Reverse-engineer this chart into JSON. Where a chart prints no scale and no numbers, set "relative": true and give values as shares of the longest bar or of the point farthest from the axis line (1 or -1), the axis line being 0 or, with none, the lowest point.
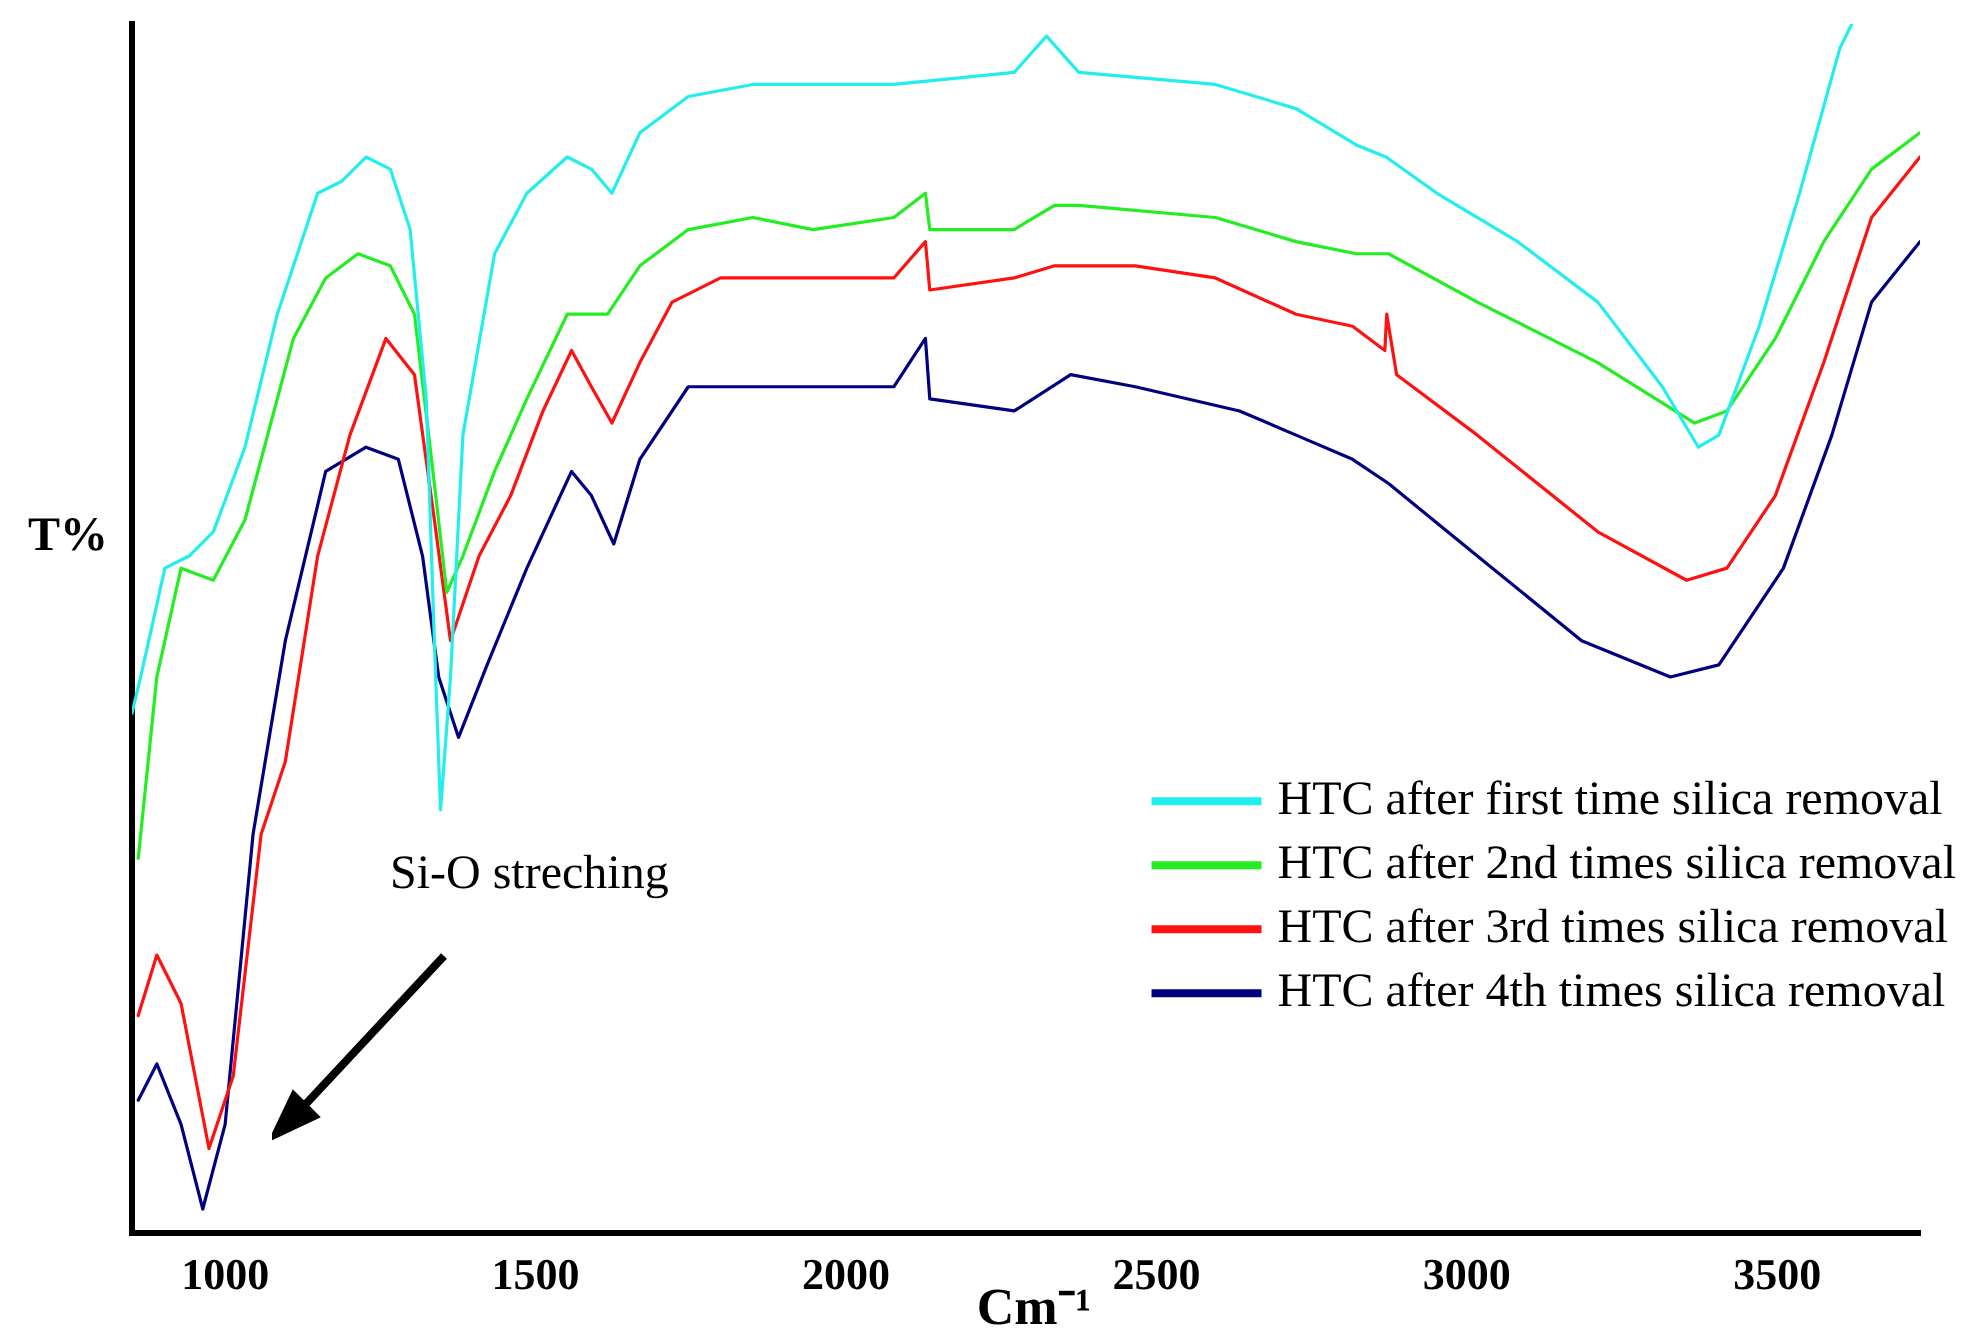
{
  "chart_data": {
    "type": "line",
    "relative": true,
    "xlabel": "Cm⁻¹",
    "ylabel": "T%",
    "xlim": [
      850,
      3730
    ],
    "xticks": [
      1000,
      1500,
      2000,
      2500,
      3000,
      3500
    ],
    "grid": false,
    "legend": "bottom right",
    "marker": "none",
    "line_style": "solid",
    "annotations": [
      "Si-O streching"
    ],
    "series": [
      {
        "name": "HTC after first time silica removal",
        "color": "#22eeee",
        "x": [
          850,
          864,
          903,
          942,
          981,
          1032,
          1084,
          1149,
          1188,
          1227,
          1266,
          1298,
          1324,
          1337,
          1347,
          1363,
          1383,
          1434,
          1486,
          1551,
          1590,
          1623,
          1668,
          1746,
          1850,
          1947,
          2077,
          2271,
          2323,
          2375,
          2595,
          2725,
          2822,
          2870,
          2952,
          3082,
          3211,
          3315,
          3373,
          3406,
          3471,
          3536,
          3601,
          3620
        ],
        "values": [
          0.43,
          0.46,
          0.55,
          0.56,
          0.58,
          0.65,
          0.76,
          0.86,
          0.87,
          0.89,
          0.88,
          0.83,
          0.69,
          0.49,
          0.35,
          0.46,
          0.66,
          0.81,
          0.86,
          0.89,
          0.88,
          0.86,
          0.91,
          0.94,
          0.95,
          0.95,
          0.95,
          0.96,
          0.99,
          0.96,
          0.95,
          0.93,
          0.9,
          0.89,
          0.86,
          0.82,
          0.77,
          0.7,
          0.65,
          0.66,
          0.75,
          0.86,
          0.98,
          1
        ]
      },
      {
        "name": "HTC after 2nd times silica removal",
        "color": "#22ee22",
        "x": [
          860,
          890,
          929,
          981,
          1032,
          1110,
          1162,
          1214,
          1266,
          1305,
          1337,
          1357,
          1383,
          1434,
          1486,
          1551,
          1616,
          1668,
          1746,
          1850,
          1947,
          2077,
          2128,
          2135,
          2271,
          2336,
          2375,
          2595,
          2725,
          2822,
          2874,
          3017,
          3211,
          3367,
          3419,
          3497,
          3575,
          3652,
          3730
        ],
        "values": [
          0.31,
          0.46,
          0.55,
          0.54,
          0.59,
          0.74,
          0.79,
          0.81,
          0.8,
          0.76,
          0.62,
          0.53,
          0.56,
          0.63,
          0.69,
          0.76,
          0.76,
          0.8,
          0.83,
          0.84,
          0.83,
          0.84,
          0.86,
          0.83,
          0.83,
          0.85,
          0.85,
          0.84,
          0.82,
          0.81,
          0.81,
          0.77,
          0.72,
          0.67,
          0.68,
          0.74,
          0.82,
          0.88,
          0.91
        ]
      },
      {
        "name": "HTC after 3rd times silica removal",
        "color": "#ff1111",
        "x": [
          860,
          890,
          929,
          974,
          1013,
          1058,
          1097,
          1149,
          1201,
          1259,
          1305,
          1337,
          1363,
          1409,
          1460,
          1512,
          1558,
          1590,
          1623,
          1668,
          1720,
          1798,
          1850,
          1947,
          2077,
          2128,
          2135,
          2271,
          2336,
          2466,
          2595,
          2725,
          2816,
          2868,
          2871,
          2887,
          3017,
          3211,
          3354,
          3419,
          3497,
          3575,
          3652,
          3730
        ],
        "values": [
          0.18,
          0.23,
          0.19,
          0.07,
          0.13,
          0.33,
          0.39,
          0.56,
          0.66,
          0.74,
          0.71,
          0.59,
          0.49,
          0.56,
          0.61,
          0.68,
          0.73,
          0.7,
          0.67,
          0.72,
          0.77,
          0.79,
          0.79,
          0.79,
          0.79,
          0.82,
          0.78,
          0.79,
          0.8,
          0.8,
          0.79,
          0.76,
          0.75,
          0.73,
          0.76,
          0.71,
          0.66,
          0.58,
          0.54,
          0.55,
          0.61,
          0.72,
          0.84,
          0.89
        ]
      },
      {
        "name": "HTC after 4th times silica removal",
        "color": "#000080",
        "x": [
          860,
          890,
          929,
          964,
          1000,
          1045,
          1097,
          1162,
          1227,
          1279,
          1318,
          1344,
          1376,
          1422,
          1486,
          1558,
          1590,
          1626,
          1668,
          1746,
          1850,
          1947,
          2077,
          2128,
          2135,
          2271,
          2362,
          2466,
          2634,
          2725,
          2816,
          2874,
          3017,
          3185,
          3328,
          3406,
          3510,
          3588,
          3652,
          3730
        ],
        "values": [
          0.11,
          0.14,
          0.09,
          0.02,
          0.09,
          0.33,
          0.49,
          0.63,
          0.65,
          0.64,
          0.56,
          0.46,
          0.41,
          0.47,
          0.55,
          0.63,
          0.61,
          0.57,
          0.64,
          0.7,
          0.7,
          0.7,
          0.7,
          0.74,
          0.69,
          0.68,
          0.71,
          0.7,
          0.68,
          0.66,
          0.64,
          0.62,
          0.56,
          0.49,
          0.46,
          0.47,
          0.55,
          0.66,
          0.77,
          0.82
        ]
      }
    ]
  }
}
